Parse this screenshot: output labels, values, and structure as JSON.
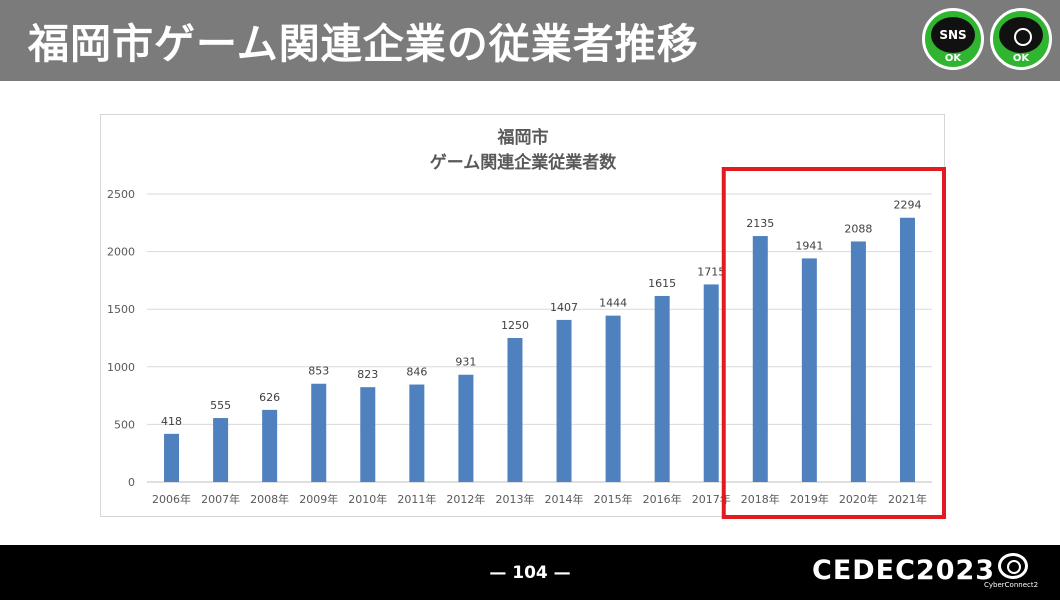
{
  "slide": {
    "title": "福岡市ゲーム関連企業の従業者推移",
    "page_number": "— 104 —",
    "badges": [
      {
        "icon": "sns-bubble-icon",
        "label": "SNS",
        "status": "OK"
      },
      {
        "icon": "camera-icon",
        "label": "",
        "status": "OK"
      }
    ],
    "event_logo": "CEDEC2023",
    "company_logo": "CyberConnect2"
  },
  "colors": {
    "header": "#7b7b7b",
    "bar": "#4e81bd",
    "highlight": "#e21b22",
    "badge": "#2fb52f"
  },
  "chart_data": {
    "type": "bar",
    "title": [
      "福岡市",
      "ゲーム関連企業従業者数"
    ],
    "categories": [
      "2006年",
      "2007年",
      "2008年",
      "2009年",
      "2010年",
      "2011年",
      "2012年",
      "2013年",
      "2014年",
      "2015年",
      "2016年",
      "2017年",
      "2018年",
      "2019年",
      "2020年",
      "2021年"
    ],
    "values": [
      418,
      555,
      626,
      853,
      823,
      846,
      931,
      1250,
      1407,
      1444,
      1615,
      1715,
      2135,
      1941,
      2088,
      2294
    ],
    "yticks": [
      "0",
      "500",
      "1000",
      "1500",
      "2000",
      "2500"
    ],
    "ylim": [
      0,
      2500
    ],
    "grid": true,
    "legend": "none",
    "highlight": {
      "from": "2018年",
      "to": "2021年"
    }
  }
}
